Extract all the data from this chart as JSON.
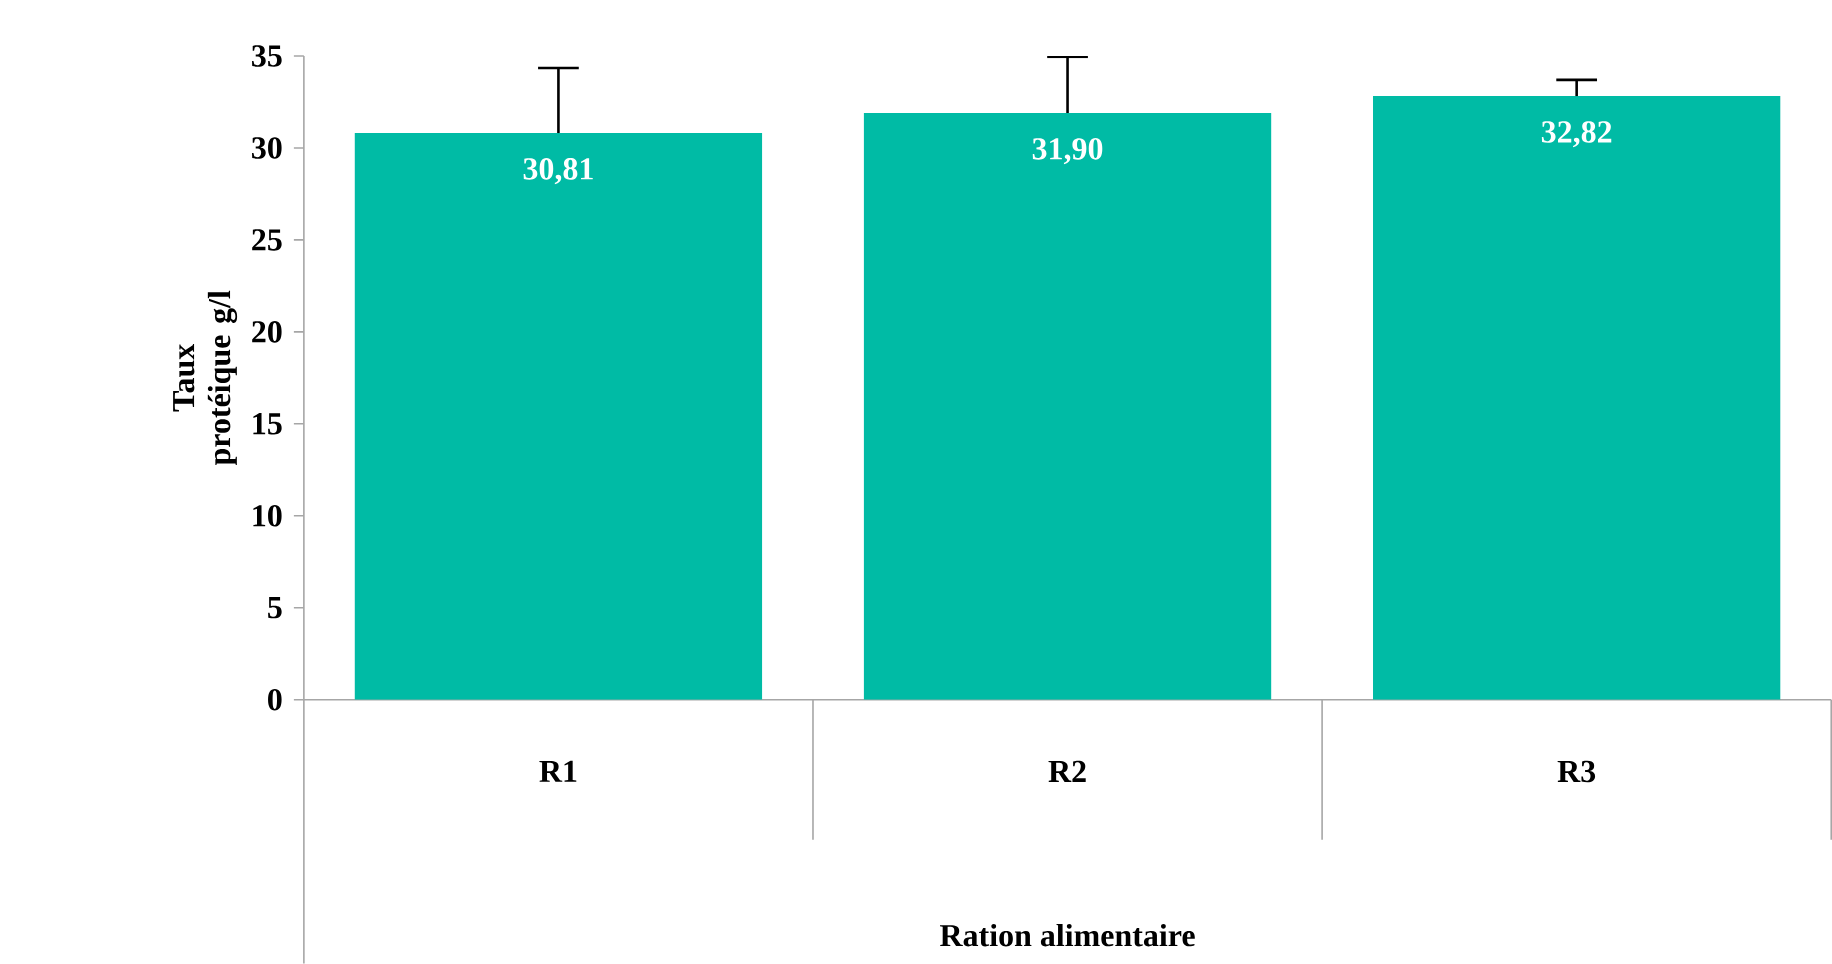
{
  "chart_data": {
    "type": "bar",
    "xlabel": "Ration alimentaire",
    "ylabel": "Taux protéique g/l",
    "categories": [
      "R1",
      "R2",
      "R3"
    ],
    "values": [
      30.81,
      31.9,
      32.82
    ],
    "value_labels": [
      "30,81",
      "31,90",
      "32,82"
    ],
    "errors": [
      [
        30.81,
        34.35
      ],
      [
        31.9,
        34.95
      ],
      [
        32.82,
        33.7
      ]
    ],
    "color": "#00bba5",
    "ylim": [
      0,
      35
    ],
    "yticks": [
      0,
      5,
      10,
      15,
      20,
      25,
      30,
      35
    ],
    "grid": false
  }
}
